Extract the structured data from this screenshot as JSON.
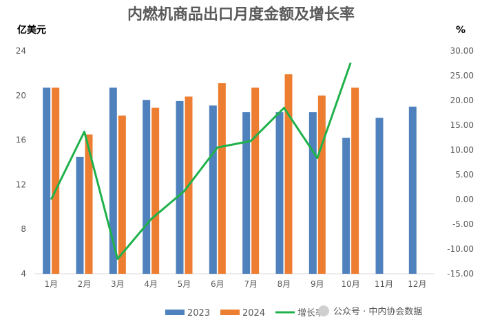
{
  "chart_data": {
    "type": "bar",
    "title": "内燃机商品出口月度金额及增长率",
    "left_unit": "亿美元",
    "right_unit": "%",
    "categories": [
      "1月",
      "2月",
      "3月",
      "4月",
      "5月",
      "6月",
      "7月",
      "8月",
      "9月",
      "10月",
      "11月",
      "12月"
    ],
    "series": [
      {
        "name": "2023",
        "type": "bar",
        "axis": "left",
        "color": "#4f81bd",
        "values": [
          20.7,
          14.5,
          20.7,
          19.6,
          19.5,
          19.1,
          18.5,
          18.5,
          18.5,
          16.2,
          18.0,
          19.0
        ]
      },
      {
        "name": "2024",
        "type": "bar",
        "axis": "left",
        "color": "#ed7d31",
        "values": [
          20.7,
          16.5,
          18.2,
          18.9,
          19.9,
          21.1,
          20.7,
          21.9,
          20.0,
          20.7,
          null,
          null
        ]
      },
      {
        "name": "增长率",
        "type": "line",
        "axis": "right",
        "color": "#1fb24a",
        "values": [
          0.0,
          13.7,
          -12.0,
          -4.0,
          1.7,
          10.5,
          11.8,
          18.5,
          8.4,
          27.6,
          null,
          null
        ]
      }
    ],
    "y_left": {
      "min": 4,
      "max": 24,
      "ticks": [
        "4",
        "8",
        "12",
        "16",
        "20",
        "24"
      ]
    },
    "y_right": {
      "min": -15,
      "max": 30,
      "ticks": [
        "-15.00",
        "-10.00",
        "-5.00",
        "0.00",
        "5.00",
        "10.00",
        "15.00",
        "20.00",
        "25.00",
        "30.00"
      ]
    },
    "grid": false,
    "legend_position": "bottom"
  },
  "watermark": "公众号 · 中内协会数据"
}
